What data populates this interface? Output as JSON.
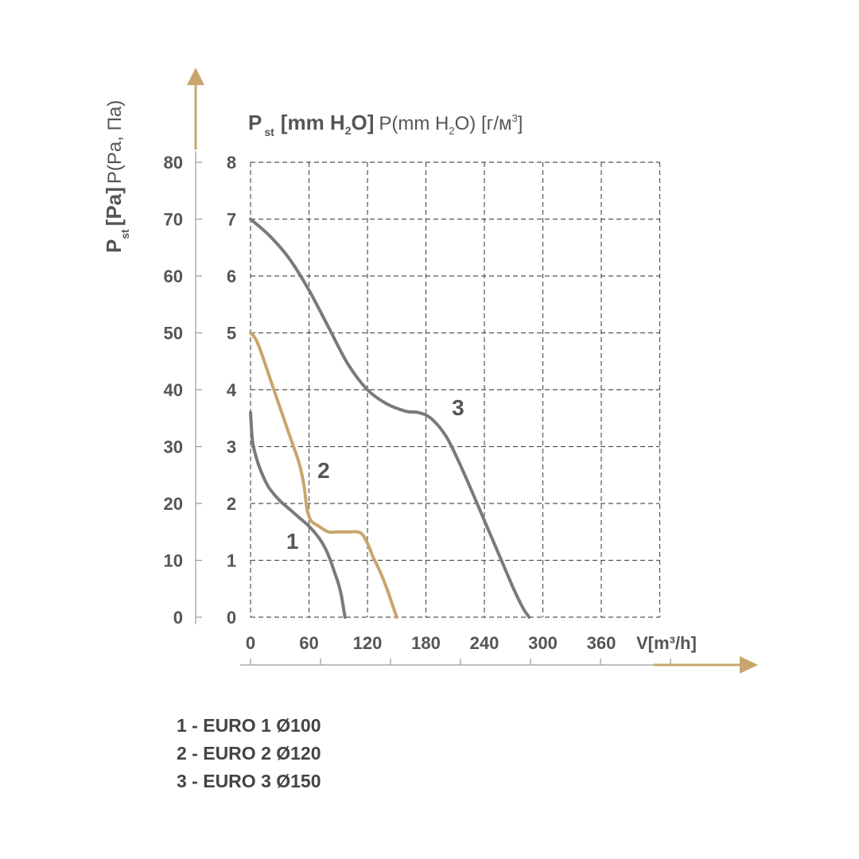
{
  "colors": {
    "axis_accent": "#C9A56D",
    "curve_gray": "#7A7A7A",
    "curve_gold": "#C9A56D",
    "grid": "#555555",
    "text": "#555555"
  },
  "chart_data": {
    "type": "line",
    "x_axis": {
      "label": "V[m³/h]",
      "ticks": [
        "0",
        "60",
        "120",
        "180",
        "240",
        "300",
        "360"
      ],
      "range": [
        0,
        420
      ]
    },
    "y_axis_pa": {
      "label_bold": "P",
      "label_sub": "st",
      "label_bold2": "[Pa]",
      "label_rest": "P(Pa, Па)",
      "ticks": [
        "0",
        "10",
        "20",
        "30",
        "40",
        "50",
        "60",
        "70",
        "80"
      ],
      "range": [
        0,
        80
      ]
    },
    "y_axis_mm": {
      "label_bold": "P",
      "label_sub": "st",
      "label_bold2": "[mm H",
      "label_bold_sub": "2",
      "label_bold3": "O]",
      "label_rest1": "P(mm H",
      "label_rest_sub": "2",
      "label_rest2": "O) [г/м",
      "label_rest_sup": "3",
      "label_rest3": "]",
      "ticks": [
        "0",
        "1",
        "2",
        "3",
        "4",
        "5",
        "6",
        "7",
        "8"
      ],
      "range": [
        0,
        8
      ]
    },
    "grid": true,
    "series": [
      {
        "name": "1",
        "color": "#7A7A7A",
        "x": [
          0,
          2,
          6,
          10,
          15,
          20,
          30,
          40,
          50,
          60,
          70,
          77,
          82,
          86,
          90,
          93,
          95,
          97
        ],
        "y": [
          36,
          31,
          28,
          26,
          24,
          22.5,
          20.5,
          19,
          17.5,
          16,
          14,
          12,
          10,
          8,
          6,
          4,
          2,
          0
        ]
      },
      {
        "name": "2",
        "color": "#C9A56D",
        "x": [
          0,
          5,
          10,
          20,
          30,
          40,
          50,
          55,
          58,
          62,
          70,
          80,
          90,
          100,
          110,
          115,
          120,
          126,
          133,
          140,
          146,
          150
        ],
        "y": [
          50,
          49,
          47,
          42,
          37,
          32,
          27,
          23,
          19,
          17,
          16,
          15,
          15,
          15,
          15,
          14.5,
          13,
          10.5,
          8,
          5,
          2,
          0
        ]
      },
      {
        "name": "3",
        "color": "#7A7A7A",
        "x": [
          0,
          20,
          40,
          60,
          80,
          100,
          120,
          140,
          160,
          172,
          185,
          200,
          212,
          225,
          240,
          255,
          270,
          280,
          286
        ],
        "y": [
          70,
          67,
          63,
          57.5,
          51,
          44.5,
          40,
          37.5,
          36.2,
          36,
          35,
          32,
          28,
          23,
          17,
          11,
          5,
          1.5,
          0
        ]
      }
    ],
    "curve_labels": [
      {
        "text": "1",
        "x": 43,
        "y": 12
      },
      {
        "text": "2",
        "x": 75,
        "y": 24.5
      },
      {
        "text": "3",
        "x": 213,
        "y": 35.5
      }
    ]
  },
  "legend": [
    "1 - EURO 1 Ø100",
    "2 - EURO 2 Ø120",
    "3 - EURO 3 Ø150"
  ]
}
